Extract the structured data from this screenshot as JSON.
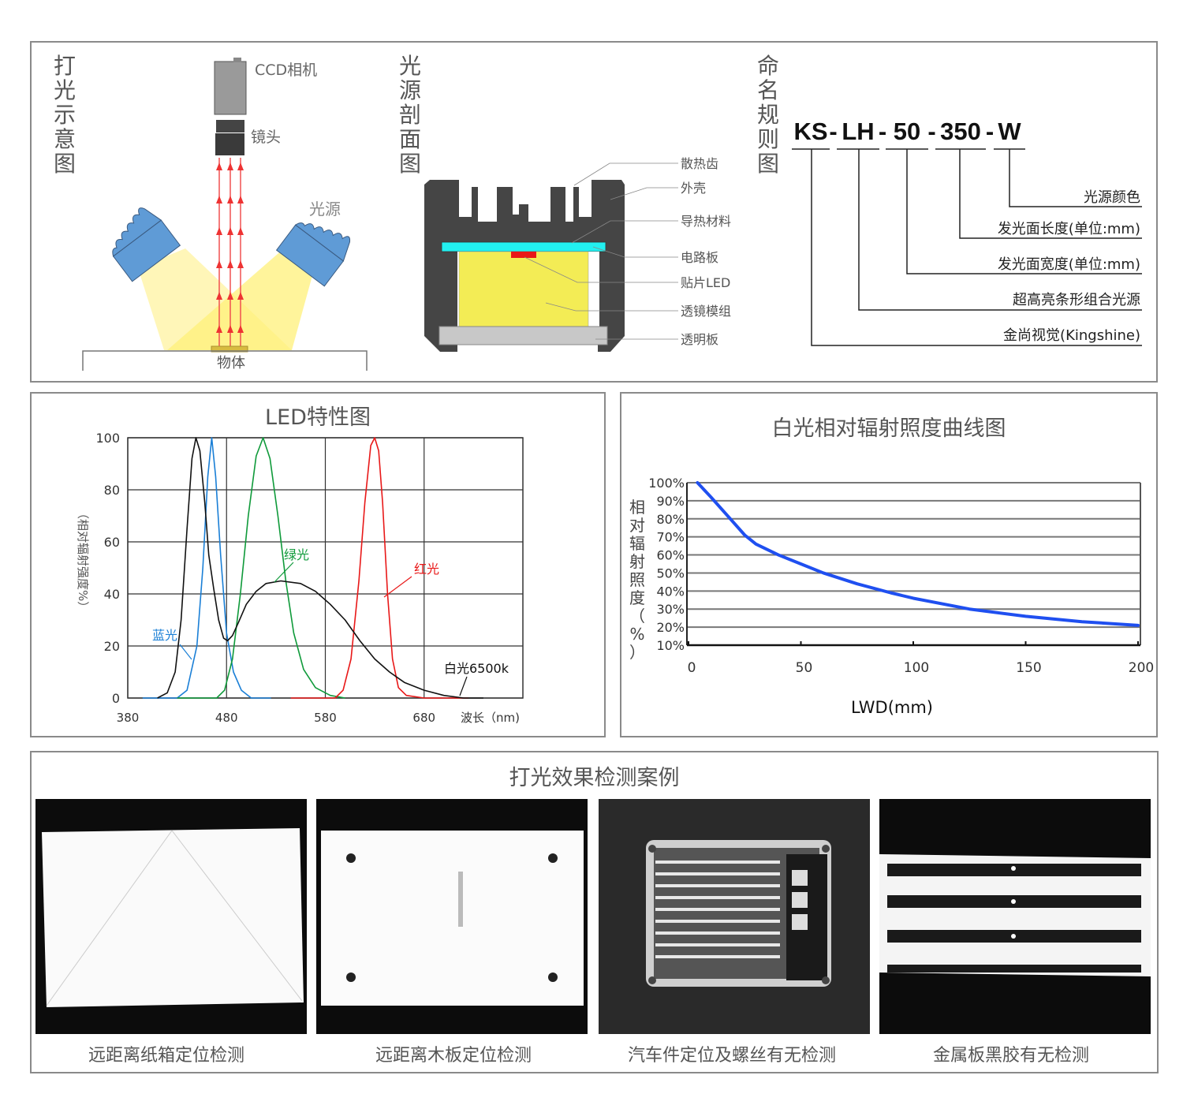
{
  "lighting_diagram": {
    "title": "打光示意图",
    "camera_label": "CCD相机",
    "lens_label": "镜头",
    "light_label": "光源",
    "object_label": "物体"
  },
  "cross_section": {
    "title": "光源剖面图",
    "labels": [
      "散热齿",
      "外壳",
      "导热材料",
      "电路板",
      "贴片LED",
      "透镜模组",
      "透明板"
    ],
    "colors": {
      "housing": "#454545",
      "pcb": "#22f0f0",
      "led": "#e81818",
      "lens": "#f3ec55",
      "plate": "#c8c8c8"
    }
  },
  "naming": {
    "title": "命名规则图",
    "code_parts": [
      "KS",
      "-",
      "LH",
      "-",
      "50",
      "-",
      "350",
      "-",
      "W"
    ],
    "descriptions": [
      "光源颜色",
      "发光面长度(单位:mm)",
      "发光面宽度(单位:mm)",
      "超高亮条形组合光源",
      "金尚视觉(Kingshine)"
    ]
  },
  "chart_data": [
    {
      "type": "line",
      "title": "LED特性图",
      "xlabel": "波长（nm)",
      "ylabel": "（相对辐射强度%）",
      "x_ticks": [
        "380",
        "480",
        "580",
        "680"
      ],
      "y_ticks": [
        "0",
        "20",
        "40",
        "60",
        "80",
        "100"
      ],
      "xlim": [
        380,
        780
      ],
      "ylim": [
        0,
        100
      ],
      "grid": true,
      "series": [
        {
          "name": "蓝光",
          "color": "#1a7fd6",
          "points": [
            [
              395,
              0
            ],
            [
              430,
              0
            ],
            [
              440,
              3
            ],
            [
              450,
              20
            ],
            [
              456,
              50
            ],
            [
              461,
              85
            ],
            [
              465,
              100
            ],
            [
              469,
              85
            ],
            [
              474,
              55
            ],
            [
              480,
              25
            ],
            [
              487,
              10
            ],
            [
              495,
              3
            ],
            [
              505,
              0
            ],
            [
              525,
              0
            ]
          ]
        },
        {
          "name": "绿光",
          "color": "#0f9a3a",
          "points": [
            [
              430,
              0
            ],
            [
              470,
              0
            ],
            [
              478,
              3
            ],
            [
              486,
              15
            ],
            [
              494,
              40
            ],
            [
              502,
              70
            ],
            [
              510,
              93
            ],
            [
              517,
              100
            ],
            [
              524,
              92
            ],
            [
              532,
              70
            ],
            [
              540,
              45
            ],
            [
              548,
              25
            ],
            [
              558,
              11
            ],
            [
              570,
              4
            ],
            [
              585,
              1
            ],
            [
              600,
              0
            ]
          ]
        },
        {
          "name": "红光",
          "color": "#e81818",
          "points": [
            [
              545,
              0
            ],
            [
              590,
              0
            ],
            [
              598,
              3
            ],
            [
              606,
              15
            ],
            [
              614,
              45
            ],
            [
              620,
              75
            ],
            [
              626,
              97
            ],
            [
              630,
              100
            ],
            [
              634,
              95
            ],
            [
              638,
              75
            ],
            [
              643,
              40
            ],
            [
              648,
              15
            ],
            [
              654,
              4
            ],
            [
              662,
              1
            ],
            [
              680,
              0
            ],
            [
              725,
              0
            ]
          ]
        },
        {
          "name": "白光6500k",
          "color": "#111111",
          "points": [
            [
              410,
              0
            ],
            [
              420,
              2
            ],
            [
              428,
              10
            ],
            [
              434,
              30
            ],
            [
              440,
              65
            ],
            [
              445,
              92
            ],
            [
              449,
              100
            ],
            [
              453,
              95
            ],
            [
              458,
              75
            ],
            [
              462,
              55
            ],
            [
              467,
              42
            ],
            [
              472,
              30
            ],
            [
              477,
              23
            ],
            [
              481,
              22
            ],
            [
              486,
              24
            ],
            [
              492,
              29
            ],
            [
              500,
              36
            ],
            [
              510,
              41
            ],
            [
              520,
              44
            ],
            [
              535,
              45
            ],
            [
              555,
              44
            ],
            [
              570,
              41
            ],
            [
              585,
              36
            ],
            [
              600,
              30
            ],
            [
              615,
              22
            ],
            [
              630,
              15
            ],
            [
              645,
              10
            ],
            [
              660,
              6
            ],
            [
              680,
              3
            ],
            [
              700,
              1
            ],
            [
              720,
              0
            ],
            [
              740,
              0
            ]
          ]
        }
      ]
    },
    {
      "type": "line",
      "title": "白光相对辐射照度曲线图",
      "xlabel": "LWD(mm)",
      "ylabel": "相对辐射照度（%）",
      "x_ticks": [
        "0",
        "50",
        "100",
        "150",
        "200"
      ],
      "y_ticks": [
        "100%",
        "90%",
        "80%",
        "70%",
        "60%",
        "50%",
        "40%",
        "30%",
        "20%",
        "10%"
      ],
      "xlim": [
        0,
        200
      ],
      "ylim": [
        10,
        100
      ],
      "grid": true,
      "series": [
        {
          "color": "#1f4ff0",
          "points": [
            [
              4,
              100
            ],
            [
              10,
              92
            ],
            [
              20,
              78
            ],
            [
              25,
              71
            ],
            [
              30,
              66
            ],
            [
              40,
              60
            ],
            [
              50,
              55
            ],
            [
              60,
              50
            ],
            [
              75,
              44
            ],
            [
              90,
              39
            ],
            [
              100,
              36
            ],
            [
              125,
              30
            ],
            [
              150,
              26
            ],
            [
              175,
              23
            ],
            [
              200,
              21
            ]
          ]
        }
      ]
    }
  ],
  "cases": {
    "title": "打光效果检测案例",
    "items": [
      {
        "caption": "远距离纸箱定位检测"
      },
      {
        "caption": "远距离木板定位检测"
      },
      {
        "caption": "汽车件定位及螺丝有无检测"
      },
      {
        "caption": "金属板黑胶有无检测"
      }
    ]
  }
}
